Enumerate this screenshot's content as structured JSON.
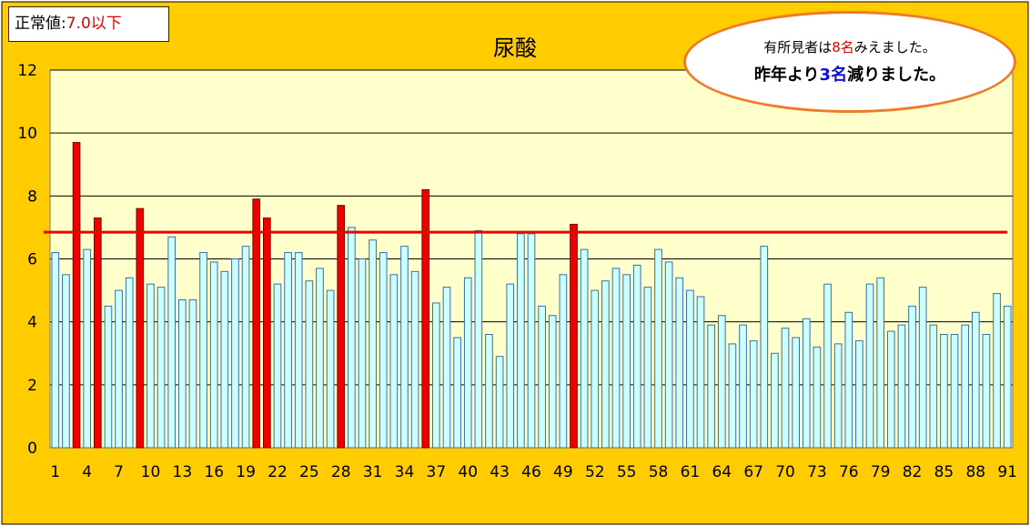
{
  "normal_range": {
    "label": "正常値:",
    "value": "7.0以下"
  },
  "annotation": {
    "line1_prefix": "有所見者は",
    "line1_count": "8名",
    "line1_suffix": "みえました。",
    "line2_prefix": "昨年より",
    "line2_count": "3名",
    "line2_suffix": "減りました。"
  },
  "colors": {
    "background": "#ffcc00",
    "plot_area": "#ffffcc",
    "bar_fill": "#ccffff",
    "bar_stroke": "#3a6ea5",
    "abnormal_bar": "#ee0000",
    "threshold_line": "#ee0000",
    "annotation_border": "#f07a2a"
  },
  "chart_data": {
    "type": "bar",
    "title": "尿酸",
    "xlabel": "",
    "ylabel": "",
    "ylim": [
      0,
      12
    ],
    "y_ticks": [
      "0",
      "2",
      "4",
      "6",
      "8",
      "10",
      "12"
    ],
    "x_tick_labels": [
      "1",
      "4",
      "7",
      "10",
      "13",
      "16",
      "19",
      "22",
      "25",
      "28",
      "31",
      "34",
      "37",
      "40",
      "43",
      "46",
      "49",
      "52",
      "55",
      "58",
      "61",
      "64",
      "67",
      "70",
      "73",
      "76",
      "79",
      "82",
      "85",
      "88",
      "91"
    ],
    "categories": [
      1,
      2,
      3,
      4,
      5,
      6,
      7,
      8,
      9,
      10,
      11,
      12,
      13,
      14,
      15,
      16,
      17,
      18,
      19,
      20,
      21,
      22,
      23,
      24,
      25,
      26,
      27,
      28,
      29,
      30,
      31,
      32,
      33,
      34,
      35,
      36,
      37,
      38,
      39,
      40,
      41,
      42,
      43,
      44,
      45,
      46,
      47,
      48,
      49,
      50,
      51,
      52,
      53,
      54,
      55,
      56,
      57,
      58,
      59,
      60,
      61,
      62,
      63,
      64,
      65,
      66,
      67,
      68,
      69,
      70,
      71,
      72,
      73,
      74,
      75,
      76,
      77,
      78,
      79,
      80,
      81,
      82,
      83,
      84,
      85,
      86,
      87,
      88,
      89,
      90,
      91
    ],
    "values": [
      6.2,
      5.5,
      9.7,
      6.3,
      7.3,
      4.5,
      5.0,
      5.4,
      7.6,
      5.2,
      5.1,
      6.7,
      4.7,
      4.7,
      6.2,
      5.9,
      5.6,
      6.0,
      6.4,
      7.9,
      7.3,
      5.2,
      6.2,
      6.2,
      5.3,
      5.7,
      5.0,
      7.7,
      7.0,
      6.0,
      6.6,
      6.2,
      5.5,
      6.4,
      5.6,
      8.2,
      4.6,
      5.1,
      3.5,
      5.4,
      6.9,
      3.6,
      2.9,
      5.2,
      6.8,
      6.8,
      4.5,
      4.2,
      5.5,
      7.1,
      6.3,
      5.0,
      5.3,
      5.7,
      5.5,
      5.8,
      5.1,
      6.3,
      5.9,
      5.4,
      5.0,
      4.8,
      3.9,
      4.2,
      3.3,
      3.9,
      3.4,
      6.4,
      3.0,
      3.8,
      3.5,
      4.1,
      3.2,
      5.2,
      3.3,
      4.3,
      3.4,
      5.2,
      5.4,
      3.7,
      3.9,
      4.5,
      5.1,
      3.9,
      3.6,
      3.6,
      3.9,
      4.3,
      3.6,
      4.9,
      4.5
    ],
    "threshold": 6.85,
    "grid": true,
    "legend": "none"
  }
}
